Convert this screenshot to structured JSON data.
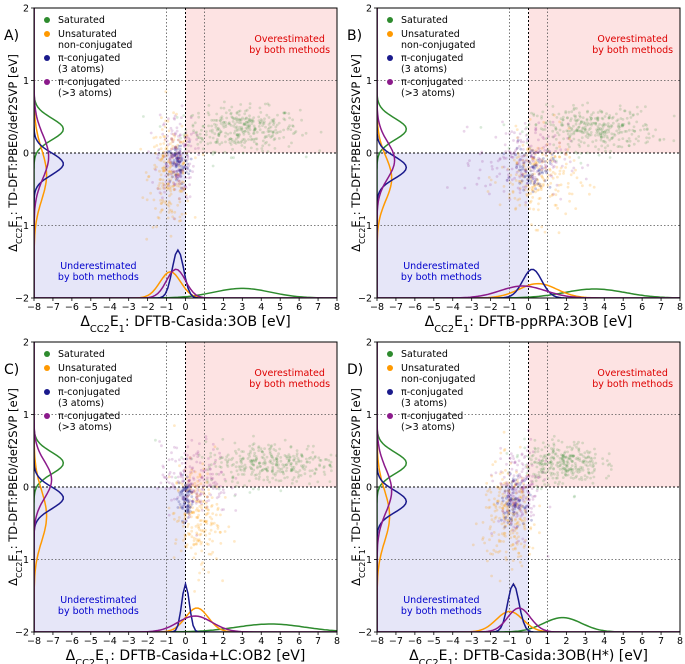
{
  "colors": {
    "saturated": "#2e8b2e",
    "unsaturated": "#ff9900",
    "pi3": "#1a1a8c",
    "pi_more": "#8b1a8b",
    "over_fill": "#fde3e3",
    "under_fill": "#e6e6f8",
    "over_text": "#dd0000",
    "under_text": "#0000cc",
    "tick_color": "#cc0000"
  },
  "chart_data": [
    {
      "type": "scatter",
      "panel_label": "A)",
      "xlabel": "Δ_{CC2}E_1: DFTB-Casida:3OB [eV]",
      "ylabel": "Δ_{CC2}E_1: TD-DFT:PBE0/def2SVP [eV]",
      "xlim": [
        -8,
        8
      ],
      "ylim": [
        -2,
        2
      ],
      "xticks": [
        "−8",
        "−7",
        "−6",
        "−5",
        "−4",
        "−3",
        "−2",
        "−1",
        "0",
        "1",
        "2",
        "3",
        "4",
        "5",
        "6",
        "7",
        "8"
      ],
      "yticks": [
        "−2",
        "−1",
        "0",
        "1",
        "2"
      ],
      "legend": [
        "Saturated",
        "Unsaturated\n non-conjugated",
        "π-conjugated\n (3 atoms)",
        "π-conjugated\n (>3 atoms)"
      ],
      "regions": {
        "over": "Overestimated\nby both methods",
        "under": "Underestimated\nby both methods"
      },
      "clusters": [
        {
          "series": "saturated",
          "cx": 3.0,
          "cy": 0.33,
          "sx": 1.5,
          "sy": 0.15,
          "n": 340
        },
        {
          "series": "unsaturated",
          "cx": -0.8,
          "cy": -0.3,
          "sx": 0.55,
          "sy": 0.35,
          "n": 220
        },
        {
          "series": "pi3",
          "cx": -0.4,
          "cy": -0.15,
          "sx": 0.3,
          "sy": 0.15,
          "n": 90
        },
        {
          "series": "pi_more",
          "cx": -0.5,
          "cy": -0.05,
          "sx": 0.5,
          "sy": 0.3,
          "n": 160
        }
      ]
    },
    {
      "type": "scatter",
      "panel_label": "B)",
      "xlabel": "Δ_{CC2}E_1: DFTB-ppRPA:3OB [eV]",
      "ylabel": "Δ_{CC2}E_1: TD-DFT:PBE0/def2SVP [eV]",
      "xlim": [
        -8,
        8
      ],
      "ylim": [
        -2,
        2
      ],
      "xticks": [
        "−8",
        "−7",
        "−6",
        "−5",
        "−4",
        "−3",
        "−2",
        "−1",
        "0",
        "1",
        "2",
        "3",
        "4",
        "5",
        "6",
        "7",
        "8"
      ],
      "yticks": [
        "−2",
        "−1",
        "0",
        "1",
        "2"
      ],
      "legend": [
        "Saturated",
        "Unsaturated\n non-conjugated",
        "π-conjugated\n (3 atoms)",
        "π-conjugated\n (>3 atoms)"
      ],
      "regions": {
        "over": "Overestimated\nby both methods",
        "under": "Underestimated\nby both methods"
      },
      "clusters": [
        {
          "series": "saturated",
          "cx": 3.5,
          "cy": 0.33,
          "sx": 1.6,
          "sy": 0.15,
          "n": 340
        },
        {
          "series": "unsaturated",
          "cx": 0.5,
          "cy": -0.35,
          "sx": 1.0,
          "sy": 0.3,
          "n": 220
        },
        {
          "series": "pi3",
          "cx": 0.2,
          "cy": -0.2,
          "sx": 0.5,
          "sy": 0.15,
          "n": 90
        },
        {
          "series": "pi_more",
          "cx": -0.3,
          "cy": -0.1,
          "sx": 1.2,
          "sy": 0.25,
          "n": 180
        }
      ]
    },
    {
      "type": "scatter",
      "panel_label": "C)",
      "xlabel": "Δ_{CC2}E_1: DFTB-Casida+LC:OB2 [eV]",
      "ylabel": "Δ_{CC2}E_1: TD-DFT:PBE0/def2SVP [eV]",
      "xlim": [
        -8,
        8
      ],
      "ylim": [
        -2,
        2
      ],
      "xticks": [
        "−8",
        "−7",
        "−6",
        "−5",
        "−4",
        "−3",
        "−2",
        "−1",
        "0",
        "1",
        "2",
        "3",
        "4",
        "5",
        "6",
        "7",
        "8"
      ],
      "yticks": [
        "−2",
        "−1",
        "0",
        "1",
        "2"
      ],
      "legend": [
        "Saturated",
        "Unsaturated\n non-conjugated",
        "π-conjugated\n (3 atoms)",
        "π-conjugated\n (>3 atoms)"
      ],
      "regions": {
        "over": "Overestimated\nby both methods",
        "under": "Underestimated\nby both methods"
      },
      "clusters": [
        {
          "series": "saturated",
          "cx": 4.5,
          "cy": 0.33,
          "sx": 1.8,
          "sy": 0.15,
          "n": 340
        },
        {
          "series": "unsaturated",
          "cx": 0.6,
          "cy": -0.4,
          "sx": 0.6,
          "sy": 0.35,
          "n": 220
        },
        {
          "series": "pi3",
          "cx": 0.0,
          "cy": -0.15,
          "sx": 0.2,
          "sy": 0.15,
          "n": 90
        },
        {
          "series": "pi_more",
          "cx": 0.5,
          "cy": 0.1,
          "sx": 0.9,
          "sy": 0.25,
          "n": 180
        }
      ]
    },
    {
      "type": "scatter",
      "panel_label": "D)",
      "xlabel": "Δ_{CC2}E_1: DFTB-Casida:3OB(H*) [eV]",
      "ylabel": "Δ_{CC2}E_1: TD-DFT:PBE0/def2SVP [eV]",
      "xlim": [
        -8,
        8
      ],
      "ylim": [
        -2,
        2
      ],
      "xticks": [
        "−8",
        "−7",
        "−6",
        "−5",
        "−4",
        "−3",
        "−2",
        "−1",
        "0",
        "1",
        "2",
        "3",
        "4",
        "5",
        "6",
        "7",
        "8"
      ],
      "yticks": [
        "−2",
        "−1",
        "0",
        "1",
        "2"
      ],
      "legend": [
        "Saturated",
        "Unsaturated\n non-conjugated",
        "π-conjugated\n (3 atoms)",
        "π-conjugated\n (>3 atoms)"
      ],
      "regions": {
        "over": "Overestimated\nby both methods",
        "under": "Underestimated\nby both methods"
      },
      "clusters": [
        {
          "series": "saturated",
          "cx": 1.8,
          "cy": 0.33,
          "sx": 1.0,
          "sy": 0.15,
          "n": 300
        },
        {
          "series": "unsaturated",
          "cx": -1.0,
          "cy": -0.4,
          "sx": 0.7,
          "sy": 0.35,
          "n": 240
        },
        {
          "series": "pi3",
          "cx": -0.8,
          "cy": -0.2,
          "sx": 0.3,
          "sy": 0.15,
          "n": 90
        },
        {
          "series": "pi_more",
          "cx": -0.5,
          "cy": -0.05,
          "sx": 0.6,
          "sy": 0.3,
          "n": 180
        }
      ]
    }
  ]
}
